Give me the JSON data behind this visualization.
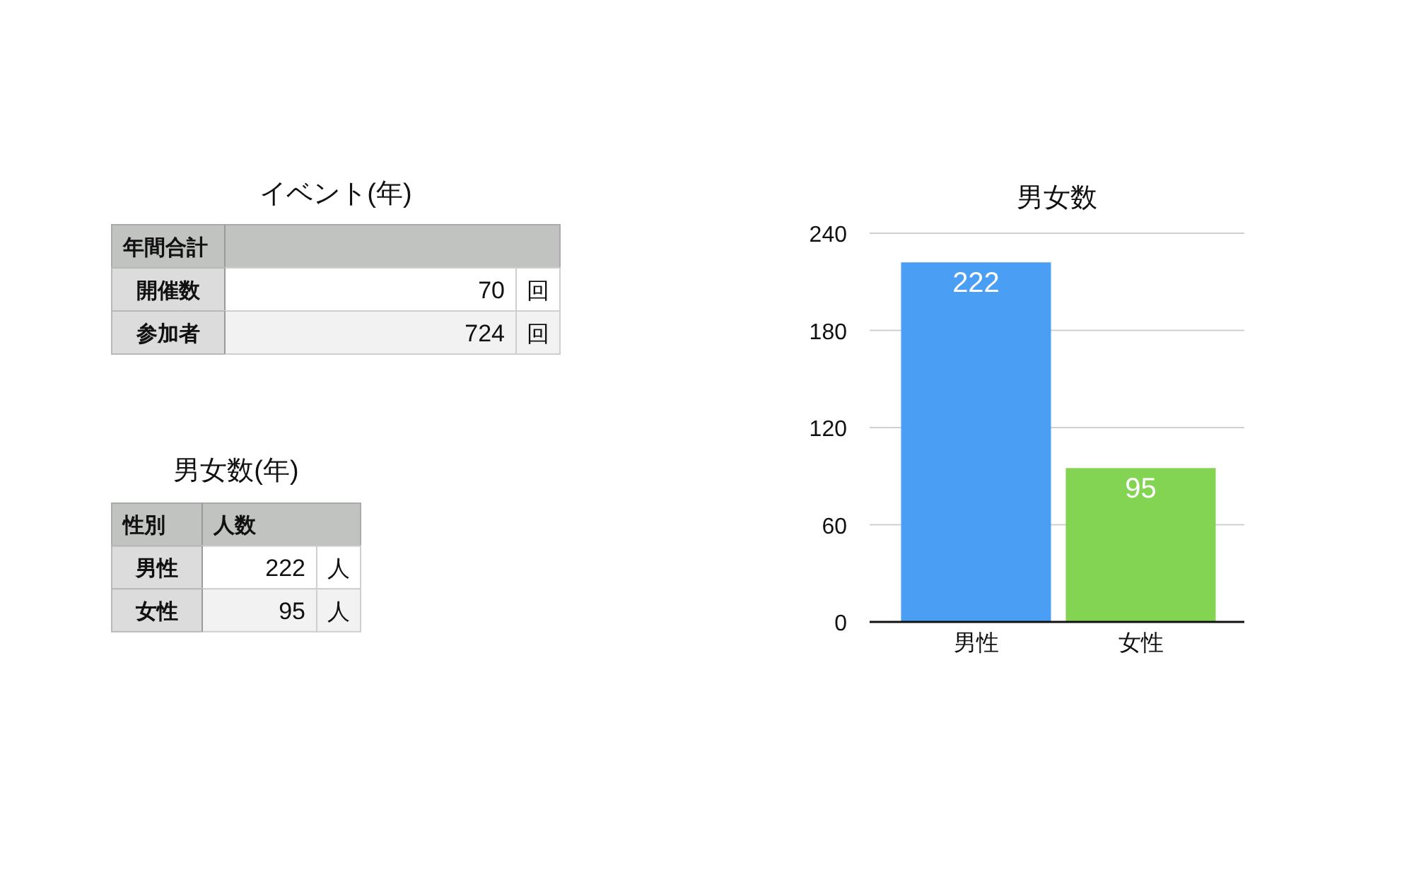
{
  "chart_data": [
    {
      "type": "other",
      "title": "イベント(年)",
      "categories": [
        "開催数",
        "参加者"
      ],
      "values": [
        70,
        724
      ],
      "data_labels": true,
      "annotations": [
        "年間合計",
        "回",
        "回"
      ]
    },
    {
      "type": "other",
      "title": "男女数(年)",
      "categories": [
        "男性",
        "女性"
      ],
      "values": [
        222,
        95
      ],
      "data_labels": true,
      "annotations": [
        "性別",
        "人数",
        "人",
        "人"
      ]
    },
    {
      "type": "bar",
      "title": "男女数",
      "categories": [
        "男性",
        "女性"
      ],
      "values": [
        222,
        95
      ],
      "colors": [
        "#4a9ff5",
        "#84d454"
      ],
      "ylim": [
        0,
        240
      ],
      "yticks": [
        0,
        60,
        120,
        180,
        240
      ],
      "grid": "y",
      "data_labels": true
    }
  ]
}
